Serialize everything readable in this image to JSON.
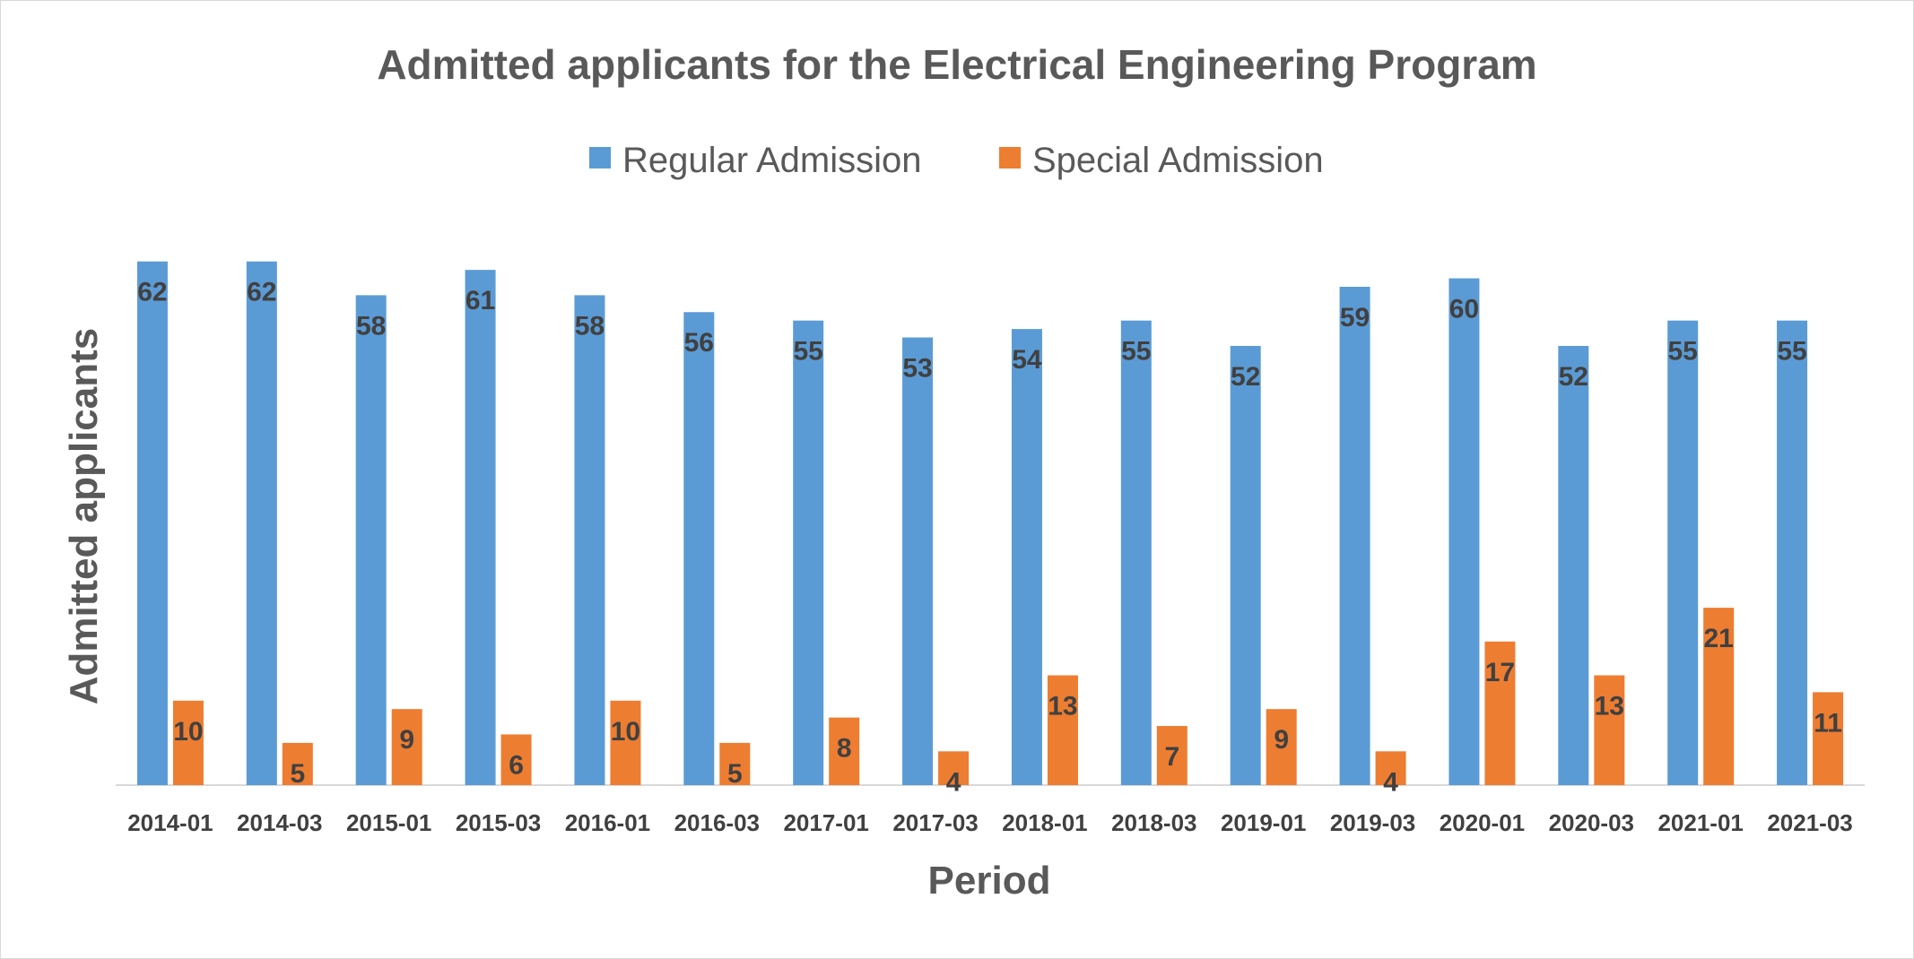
{
  "chart_data": {
    "type": "bar",
    "title": "Admitted applicants for the Electrical Engineering Program",
    "xlabel": "Period",
    "ylabel": "Admitted applicants",
    "ylim": [
      0,
      66
    ],
    "grid": false,
    "legend_position": "top",
    "categories": [
      "2014-01",
      "2014-03",
      "2015-01",
      "2015-03",
      "2016-01",
      "2016-03",
      "2017-01",
      "2017-03",
      "2018-01",
      "2018-03",
      "2019-01",
      "2019-03",
      "2020-01",
      "2020-03",
      "2021-01",
      "2021-03"
    ],
    "series": [
      {
        "name": "Regular Admission",
        "color": "#5b9bd5",
        "values": [
          62,
          62,
          58,
          61,
          58,
          56,
          55,
          53,
          54,
          55,
          52,
          59,
          60,
          52,
          55,
          55
        ]
      },
      {
        "name": "Special Admission",
        "color": "#ed7d31",
        "values": [
          10,
          5,
          9,
          6,
          10,
          5,
          8,
          4,
          13,
          7,
          9,
          4,
          17,
          13,
          21,
          11
        ]
      }
    ]
  }
}
